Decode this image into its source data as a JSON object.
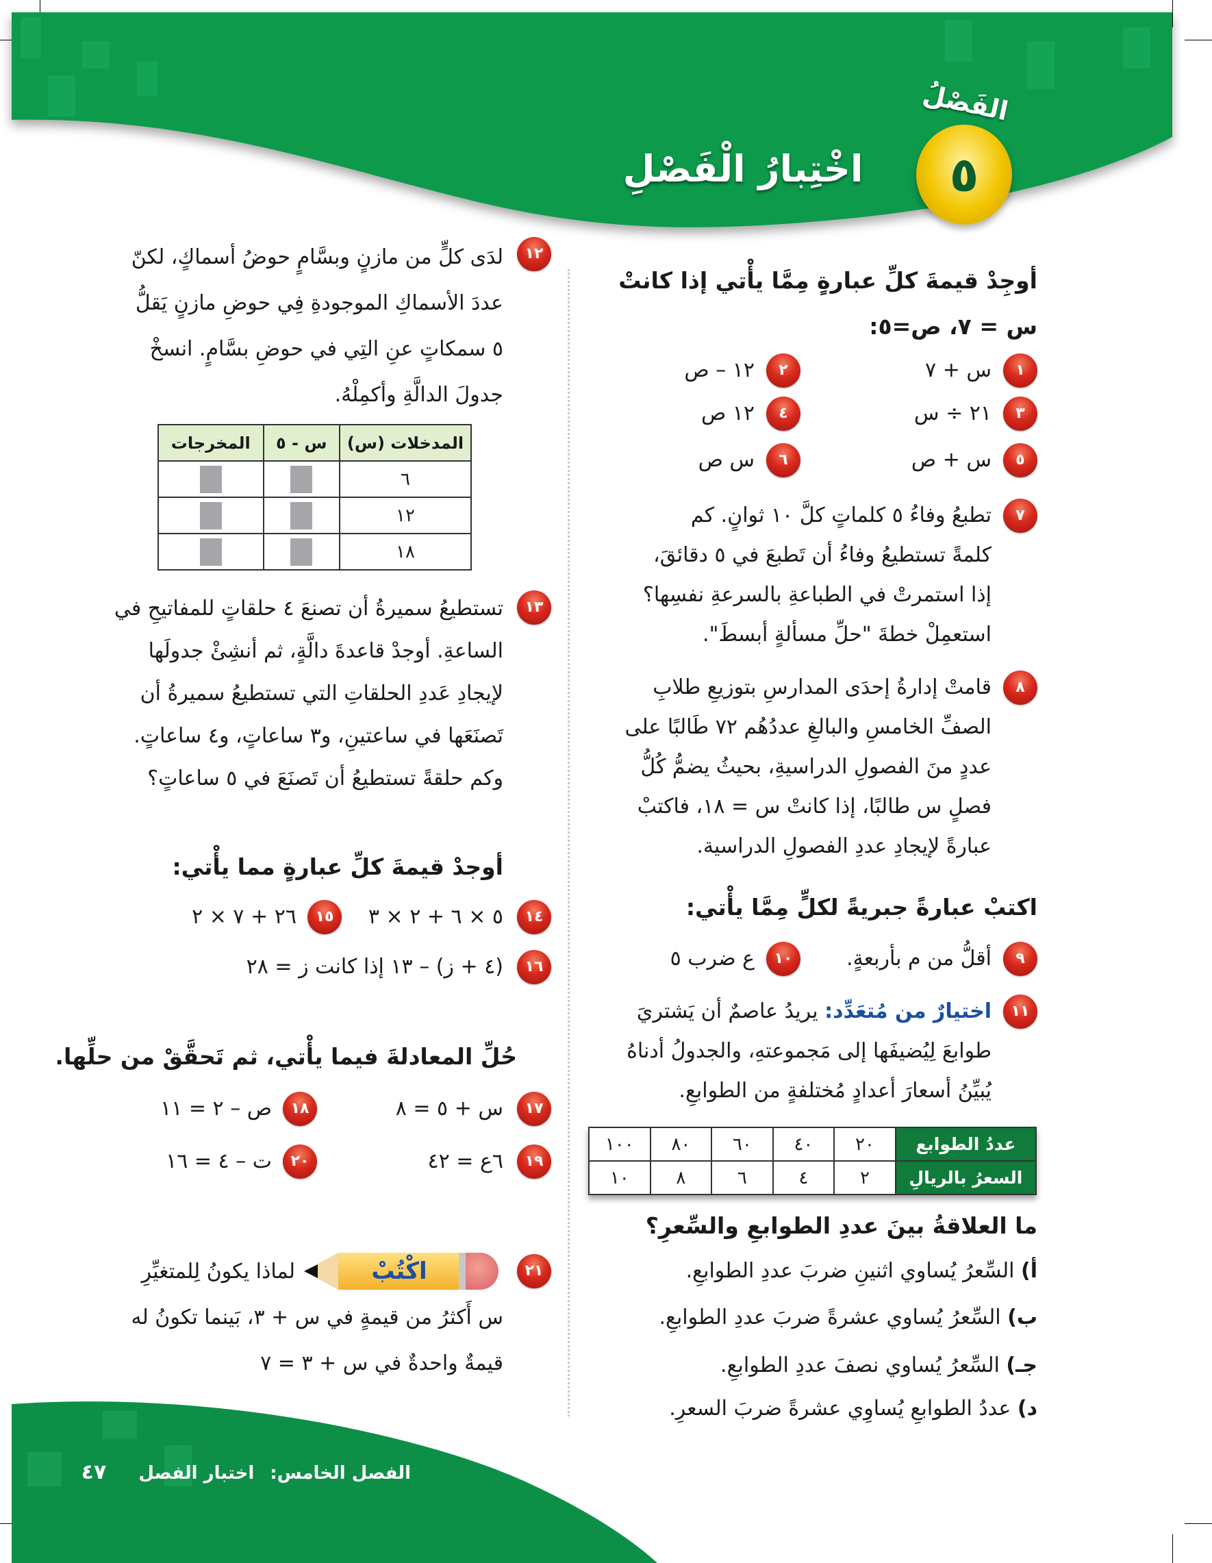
{
  "header": {
    "chapter_label": "الفَصْلُ",
    "chapter_number": "٥",
    "title": "اخْتِبارُ الْفَصْلِ",
    "colors": {
      "green": "#0e9a4b",
      "badge_gold": "#f2c500",
      "number_red": "#d8291d"
    }
  },
  "right": {
    "heading1": "أوجِدْ قيمةَ كلِّ عبارةٍ مِمَّا يأْتي إذا كانتْ",
    "vars": "س = ٧، ص=٥:",
    "items": [
      {
        "num": "١",
        "expr": "س + ٧"
      },
      {
        "num": "٢",
        "expr": "١٢ – ص"
      },
      {
        "num": "٣",
        "expr": "٢١ ÷ س"
      },
      {
        "num": "٤",
        "expr": "١٢ ص"
      },
      {
        "num": "٥",
        "expr": "س + ص"
      },
      {
        "num": "٦",
        "expr": "س ص"
      }
    ],
    "q7": {
      "num": "٧",
      "lines": [
        "تطبعُ وفاءُ ٥ كلماتٍ كلَّ ١٠ ثوانٍ. كم",
        "كلمةً تستطيعُ وفاءُ أن تَطبعَ في ٥ دقائقَ،",
        "إذا استمرتْ في الطباعةِ بالسرعةِ نفسِها؟",
        "استعمِلْ خطةَ \"حلِّ مسألةٍ أبسطَ\"."
      ]
    },
    "q8": {
      "num": "٨",
      "lines": [
        "قامتْ إدارةُ إحدَى المدارسِ بتوزيعِ طلابِ",
        "الصفِّ الخامسِ والبالغِ عددُهُم ٧٢ طَالبًا على",
        "عددٍ منَ الفصولِ الدراسيةِ، بحيثُ يضمُّ كُلُّ",
        "فصلٍ س طالبًا، إذا كانتْ س = ١٨، فاكتبْ",
        "عبارةً لإيجادِ عددِ الفصولِ الدراسية."
      ]
    },
    "heading2": "اكتبْ عبارةً جبريةً لكلٍّ مِمَّا يأْتي:",
    "q9": {
      "num": "٩",
      "text": "أقلُّ من م بأربعةٍ."
    },
    "q10": {
      "num": "١٠",
      "text": "ع ضرب ٥"
    },
    "q11": {
      "num": "١١",
      "label": "اختيارٌ من مُتعَدِّد:",
      "lines": [
        "يريدُ عاصمٌ أن يَشتريَ",
        "طوابعَ لِيُضيفَها إلى مَجموعتهِ، والجدولُ أدناهُ",
        "يُبيِّنُ أسعارَ أعدادٍ مُختلفةٍ من الطوابعِ."
      ]
    },
    "stamps_table": {
      "row1_header": "عددُ الطوابع",
      "row2_header": "السعرُ بالريالِ",
      "counts": [
        "٢٠",
        "٤٠",
        "٦٠",
        "٨٠",
        "١٠٠"
      ],
      "prices": [
        "٢",
        "٤",
        "٦",
        "٨",
        "١٠"
      ]
    },
    "question": "ما العلاقةُ بينَ عددِ الطوابعِ والسِّعرِ؟",
    "options": [
      {
        "letter": "أ)",
        "text": "السِّعرُ يُساوي اثنينِ ضربَ عددِ الطوابعِ."
      },
      {
        "letter": "ب)",
        "text": "السِّعرُ يُساوي عشرةً ضربَ عددِ الطوابعِ."
      },
      {
        "letter": "جـ)",
        "text": "السِّعرُ يُساوي نصفَ عددِ الطوابعِ."
      },
      {
        "letter": "د)",
        "text": "عددُ الطوابعِ يُساوِي عشرةً ضربَ السعرِ."
      }
    ]
  },
  "left": {
    "q12": {
      "num": "١٢",
      "lines": [
        "لدَى كلٍّ من مازنٍ وبسَّامٍ حوضُ أسماكٍ، لكنّ",
        "عددَ الأسماكِ الموجودةِ فِي حوضِ مازنٍ يَقلُّ",
        "٥ سمكاتٍ عنِ التِي في حوضِ بسَّامٍ. انسخْ",
        "جدولَ الدالَّةِ وأكمِلْهُ."
      ]
    },
    "function_table": {
      "headers": [
        "المدخلات (س)",
        "س - ٥",
        "المخرجات"
      ],
      "inputs": [
        "٦",
        "١٢",
        "١٨"
      ]
    },
    "q13": {
      "num": "١٣",
      "lines": [
        "تستطيعُ سميرةُ أن تصنعَ ٤ حلقاتٍ للمفاتيحِ في",
        "الساعةِ. أوجدْ قاعدةَ دالَّةٍ، ثم أنشِئْ جدولَها",
        "لإيجادِ عَددِ الحلقاتِ التي تستطيعُ سميرةُ أن",
        "تَصنَعَها في ساعتينِ، و٣ ساعاتٍ، و٤ ساعاتٍ.",
        "وكم حلقةً تستطيعُ أن تَصنَعَ في ٥ ساعاتٍ؟"
      ]
    },
    "heading3": "أوجدْ قيمةَ كلِّ عبارةٍ مما يأْتي:",
    "q14": {
      "num": "١٤",
      "expr": "٥ × ٦ + ٢ × ٣"
    },
    "q15": {
      "num": "١٥",
      "expr": "٢٦ + ٧ × ٢"
    },
    "q16": {
      "num": "١٦",
      "expr": "(٤ + ز) – ١٣ إذا كانت ز = ٢٨"
    },
    "heading4": "حُلِّ المعادلةَ فيما يأْتي، ثم تَحقَّقْ من حلِّها.",
    "q17": {
      "num": "١٧",
      "expr": "س + ٥ = ٨"
    },
    "q18": {
      "num": "١٨",
      "expr": "ص – ٢ = ١١"
    },
    "q19": {
      "num": "١٩",
      "expr": "٦ع = ٤٢"
    },
    "q20": {
      "num": "٢٠",
      "expr": "ت – ٤ = ١٦"
    },
    "q21": {
      "num": "٢١",
      "pencil_label": "اكْتُبْ",
      "lines": [
        "لماذا يكونُ لِلمتغيِّرِ",
        "س أَكثرُ من قيمةٍ في س + ٣، بَينما تكونُ له",
        "قيمةٌ واحدةٌ في س + ٣ = ٧"
      ]
    }
  },
  "footer": {
    "chapter": "الفصل الخامس:",
    "section": "اختبار الفصل",
    "page_number": "٤٧"
  }
}
